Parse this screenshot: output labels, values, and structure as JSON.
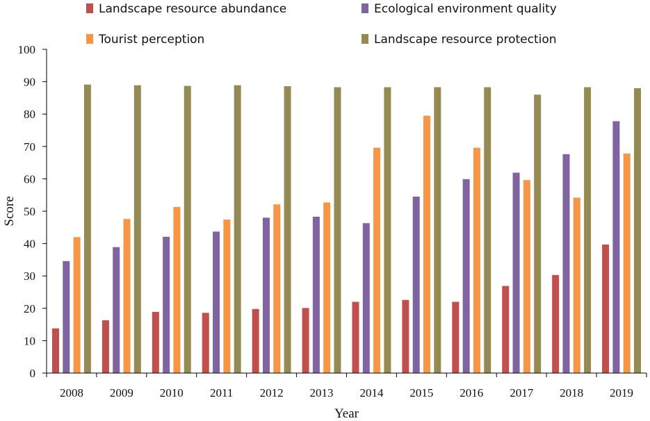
{
  "chart_data": {
    "type": "bar",
    "title": "",
    "xlabel": "Year",
    "ylabel": "Score",
    "ylim": [
      0,
      100
    ],
    "yticks": [
      0,
      10,
      20,
      30,
      40,
      50,
      60,
      70,
      80,
      90,
      100
    ],
    "categories": [
      "2008",
      "2009",
      "2010",
      "2011",
      "2012",
      "2013",
      "2014",
      "2015",
      "2016",
      "2017",
      "2018",
      "2019"
    ],
    "series": [
      {
        "name": "Landscape resource abundance",
        "color": "#c0504d",
        "values": [
          13.8,
          16.3,
          18.9,
          18.6,
          19.8,
          20.1,
          22.0,
          22.6,
          22.0,
          26.9,
          30.3,
          39.7
        ]
      },
      {
        "name": "Ecological environment quality",
        "color": "#8064a2",
        "values": [
          34.6,
          38.9,
          42.1,
          43.7,
          48.0,
          48.3,
          46.3,
          54.5,
          59.9,
          61.9,
          67.6,
          77.8
        ]
      },
      {
        "name": "Tourist perception",
        "color": "#f79646",
        "values": [
          42.0,
          47.6,
          51.3,
          47.4,
          52.1,
          52.7,
          69.6,
          79.5,
          69.6,
          59.6,
          54.2,
          67.8
        ]
      },
      {
        "name": "Landscape resource protection",
        "color": "#948a54",
        "values": [
          89.1,
          88.9,
          88.7,
          88.9,
          88.6,
          88.3,
          88.3,
          88.3,
          88.3,
          86.0,
          88.3,
          88.0
        ]
      }
    ],
    "legend_position": "top",
    "grid": false
  }
}
